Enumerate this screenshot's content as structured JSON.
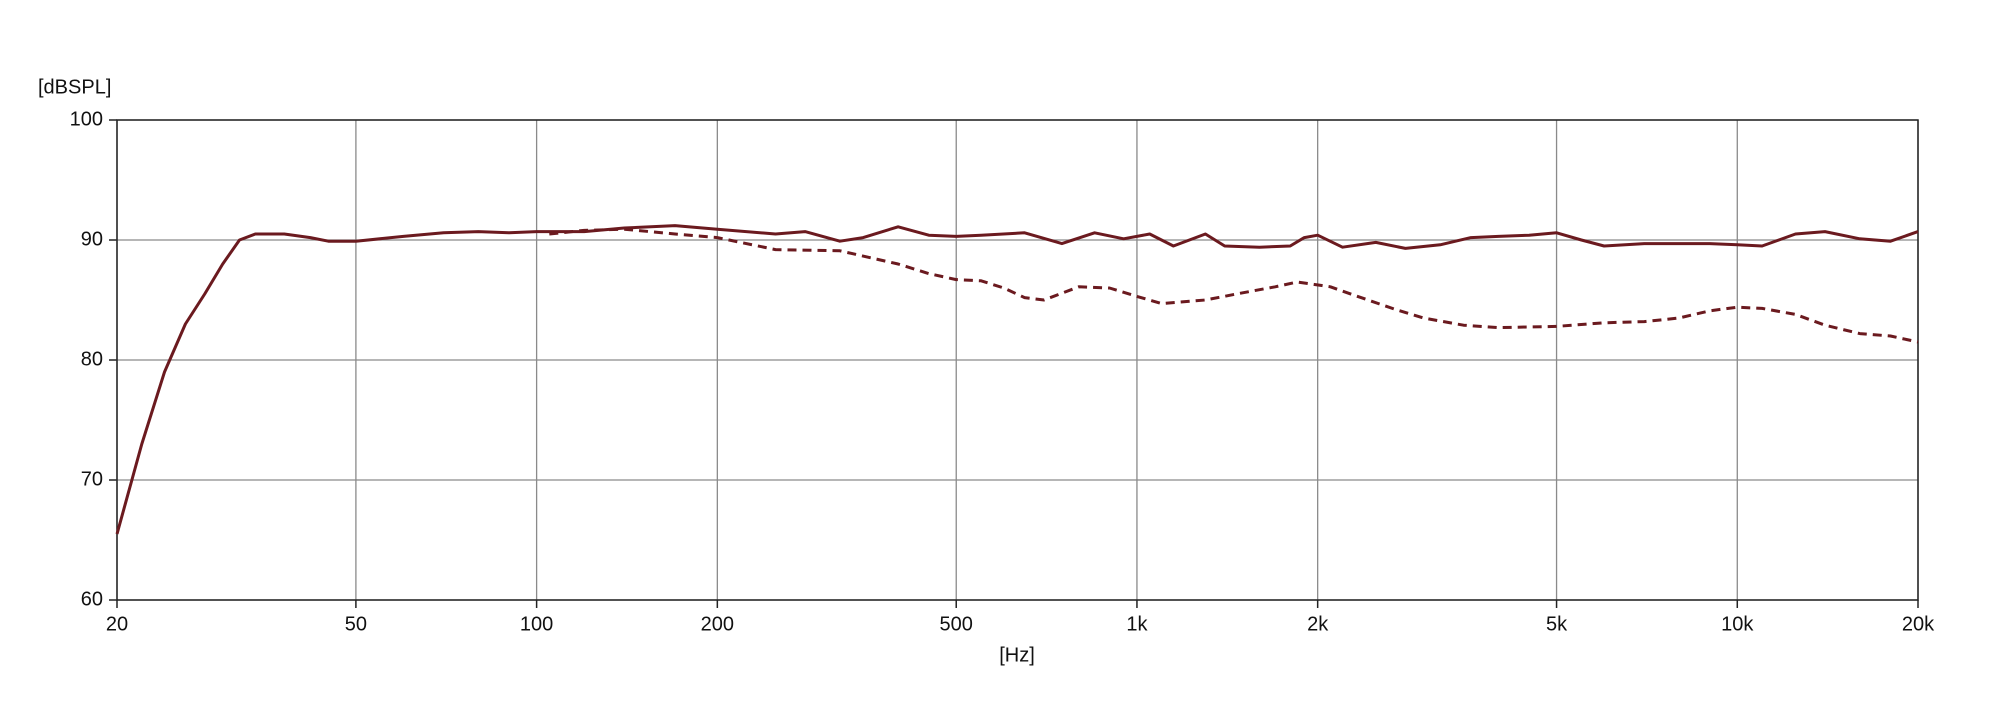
{
  "chart_data": {
    "type": "line",
    "y_label": "[dBSPL]",
    "x_label": "[Hz]",
    "log_x": true,
    "grid": true,
    "xlim": [
      20,
      20000
    ],
    "xticks": [
      20,
      50,
      100,
      200,
      500,
      {
        "value": 1000,
        "label": "1k"
      },
      {
        "value": 2000,
        "label": "2k"
      },
      {
        "value": 5000,
        "label": "5k"
      },
      {
        "value": 10000,
        "label": "10k"
      },
      {
        "value": 20000,
        "label": "20k"
      }
    ],
    "ylim": [
      60,
      100
    ],
    "yticks": [
      60,
      70,
      80,
      90,
      100
    ],
    "series": [
      {
        "color": "#6b1a1f",
        "dashed": false,
        "x": [
          20,
          22,
          24,
          26,
          28,
          30,
          32,
          34,
          38,
          42,
          45,
          50,
          60,
          70,
          80,
          90,
          100,
          120,
          140,
          170,
          200,
          250,
          280,
          320,
          350,
          400,
          450,
          500,
          550,
          650,
          750,
          850,
          950,
          1050,
          1150,
          1300,
          1400,
          1600,
          1800,
          1900,
          2000,
          2200,
          2500,
          2800,
          3200,
          3600,
          4000,
          4500,
          5000,
          5500,
          6000,
          7000,
          8000,
          9000,
          10000,
          11000,
          12500,
          14000,
          16000,
          18000,
          20000
        ],
        "values": [
          65.5,
          73,
          79,
          83,
          85.5,
          88,
          90,
          90.5,
          90.5,
          90.2,
          89.9,
          89.9,
          90.3,
          90.6,
          90.7,
          90.6,
          90.7,
          90.7,
          91,
          91.2,
          90.9,
          90.5,
          90.7,
          89.9,
          90.2,
          91.1,
          90.4,
          90.3,
          90.4,
          90.6,
          89.7,
          90.6,
          90.1,
          90.5,
          89.5,
          90.5,
          89.5,
          89.4,
          89.5,
          90.2,
          90.4,
          89.4,
          89.8,
          89.3,
          89.6,
          90.2,
          90.3,
          90.4,
          90.6,
          90,
          89.5,
          89.7,
          89.7,
          89.7,
          89.6,
          89.5,
          90.5,
          90.7,
          90.1,
          89.9,
          90.7
        ]
      },
      {
        "color": "#6b1a1f",
        "dashed": true,
        "x": [
          105,
          120,
          140,
          170,
          200,
          250,
          320,
          400,
          450,
          500,
          550,
          600,
          650,
          700,
          800,
          900,
          1000,
          1100,
          1300,
          1500,
          1700,
          1850,
          2100,
          2300,
          2700,
          3000,
          3500,
          4000,
          5000,
          6000,
          7000,
          8000,
          9000,
          10000,
          11000,
          12500,
          14000,
          16000,
          18000,
          20000
        ],
        "values": [
          90.5,
          90.8,
          90.9,
          90.5,
          90.2,
          89.2,
          89.1,
          88,
          87.2,
          86.7,
          86.6,
          86,
          85.2,
          85,
          86.1,
          86,
          85.3,
          84.7,
          85,
          85.6,
          86.1,
          86.5,
          86.1,
          85.4,
          84.2,
          83.5,
          82.9,
          82.7,
          82.8,
          83.1,
          83.2,
          83.5,
          84.1,
          84.4,
          84.3,
          83.8,
          82.9,
          82.2,
          82,
          81.5
        ]
      }
    ]
  }
}
